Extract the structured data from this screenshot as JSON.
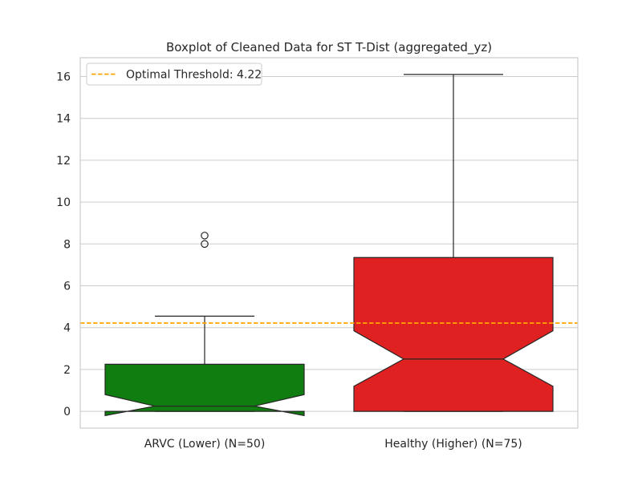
{
  "chart_data": {
    "type": "boxplot",
    "title": "Boxplot of Cleaned Data for ST T-Dist (aggregated_yz)",
    "xlabel": "",
    "ylabel": "",
    "ylim": [
      -0.8,
      16.9
    ],
    "yticks": [
      0,
      2,
      4,
      6,
      8,
      10,
      12,
      14,
      16
    ],
    "grid": "y",
    "notched": true,
    "categories": [
      "ARVC (Lower) (N=50)",
      "Healthy (Higher) (N=75)"
    ],
    "boxes": [
      {
        "category": "ARVC (Lower) (N=50)",
        "color": "#107d10",
        "whisker_low": 0.0,
        "q1": 0.0,
        "median": 0.25,
        "q3": 2.25,
        "whisker_high": 4.55,
        "notch_low": -0.2,
        "notch_high": 0.8,
        "outliers": [
          8.0,
          8.4
        ]
      },
      {
        "category": "Healthy (Higher) (N=75)",
        "color": "#e02121",
        "whisker_low": 0.0,
        "q1": 0.0,
        "median": 2.5,
        "q3": 7.35,
        "whisker_high": 16.1,
        "notch_low": 1.2,
        "notch_high": 3.85,
        "outliers": []
      }
    ],
    "reference_lines": [
      {
        "label": "Optimal Threshold: 4.22",
        "y": 4.22,
        "color": "#ffa500",
        "style": "dashed"
      }
    ],
    "legend": {
      "position": "top-left",
      "entries": [
        "Optimal Threshold: 4.22"
      ]
    }
  }
}
